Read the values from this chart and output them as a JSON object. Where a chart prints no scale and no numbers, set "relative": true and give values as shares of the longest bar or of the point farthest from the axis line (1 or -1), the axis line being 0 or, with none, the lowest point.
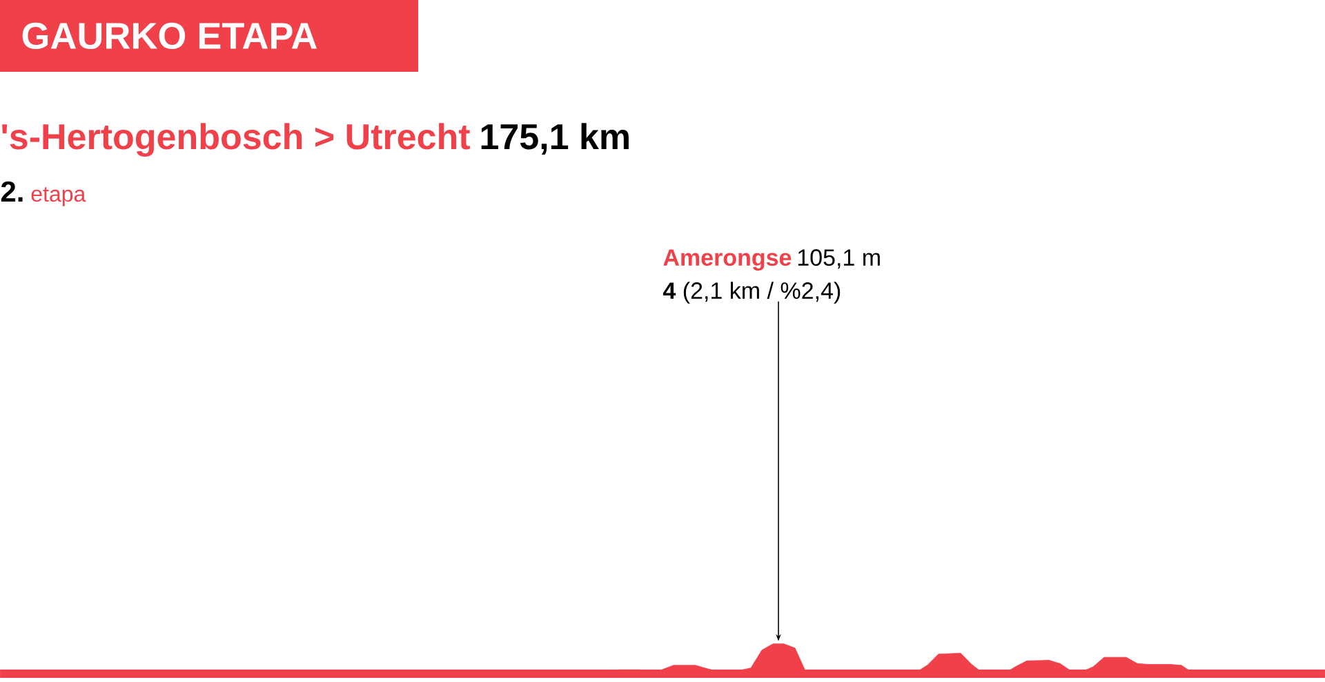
{
  "chart_data": {
    "type": "area",
    "relative": true,
    "title": "GAURKO ETAPA",
    "subtitle": "'s-Hertogenbosch > Utrecht",
    "annotations": [
      "175,1 km",
      "2.",
      "etapa",
      "Amerongse",
      "105,1 m",
      "**4** (2,1 km / %2,4)"
    ],
    "categories": [
      null,
      null,
      null,
      null,
      null,
      null,
      null,
      null,
      null,
      null,
      null,
      null,
      null,
      null,
      null,
      null,
      null,
      null,
      null,
      null,
      null,
      null,
      null,
      null,
      null,
      null,
      null,
      null,
      null,
      null,
      null,
      null,
      null,
      null,
      null,
      null,
      null,
      null,
      null,
      null,
      null,
      null,
      null,
      null,
      null,
      null,
      null,
      null,
      null,
      null,
      null,
      null,
      null,
      null,
      null,
      null,
      null,
      null,
      null,
      null,
      null,
      null,
      null,
      null,
      null,
      null,
      null,
      null,
      null,
      null,
      null,
      null,
      null,
      null,
      null,
      null,
      null,
      null,
      null,
      null,
      null,
      null,
      null,
      null,
      null,
      null,
      null,
      null,
      null,
      null,
      null,
      null,
      null,
      null,
      null,
      null,
      null,
      null,
      null,
      null,
      null,
      null,
      null,
      null,
      null,
      null,
      null,
      null,
      null,
      null,
      null,
      null,
      null,
      null,
      null,
      null,
      null,
      null,
      null,
      null,
      null
    ],
    "series": [
      {
        "color": "#f0414b",
        "values": [
          0,
          0,
          0,
          0,
          0,
          0,
          0,
          0,
          0,
          0,
          0,
          0,
          0,
          0,
          0,
          0,
          0,
          0,
          0,
          0,
          0,
          0,
          0,
          0,
          0,
          0,
          0,
          0,
          0,
          0,
          0,
          0,
          0,
          0,
          0,
          0,
          0,
          0,
          0,
          0,
          0,
          0,
          0,
          0,
          0,
          0,
          0,
          0,
          0,
          0,
          0,
          0,
          0,
          0,
          0,
          0.1,
          0.13,
          0.13,
          0.13,
          0.02,
          0.14,
          0.28,
          0.28,
          0.28,
          0.17,
          0.08,
          0.05,
          0.11,
          0.19,
          0.79,
          1,
          1,
          0.86,
          0.04,
          0,
          0.01,
          0.01,
          0.02,
          0.02,
          0.03,
          0.03,
          0.04,
          0.04,
          0.05,
          0.29,
          0.66,
          0.67,
          0.69,
          0.31,
          0.02,
          0.02,
          0.02,
          0.24,
          0.43,
          0.44,
          0.45,
          0.34,
          0.09,
          0.07,
          0.23,
          0.55,
          0.55,
          0.55,
          0.34,
          0.31,
          0.31,
          0.31,
          0.28,
          0.03,
          0.03,
          0.02,
          0.02,
          0.02,
          0.02,
          0.01,
          0.01,
          0.01,
          0.01,
          0,
          0,
          0
        ]
      }
    ]
  }
}
